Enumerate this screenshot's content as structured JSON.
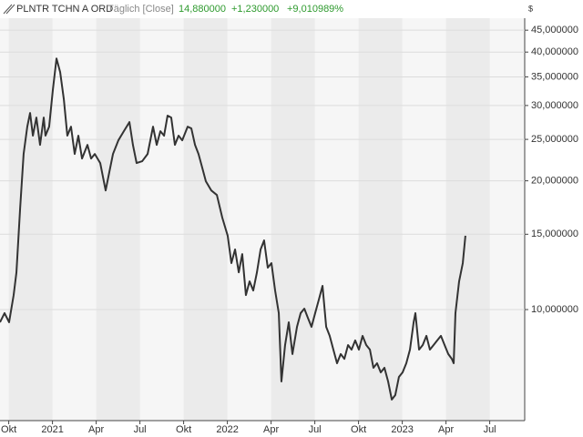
{
  "chart_data": {
    "type": "line",
    "title": "PLNTR TCHN A ORD",
    "subtitle": "Täglich [Close]",
    "annotations": [
      "14,880000",
      "+1,230000",
      "+9,010989%"
    ],
    "y_unit": "$",
    "log_scale": true,
    "grid": true,
    "color": "#333333",
    "x": [
      2020.7,
      2020.726,
      2020.752,
      2020.778,
      2020.794,
      2020.815,
      2020.835,
      2020.856,
      2020.872,
      2020.888,
      2020.908,
      2020.929,
      2020.95,
      2020.96,
      2020.981,
      2021.002,
      2021.023,
      2021.044,
      2021.065,
      2021.085,
      2021.106,
      2021.127,
      2021.148,
      2021.169,
      2021.2,
      2021.221,
      2021.242,
      2021.273,
      2021.304,
      2021.325,
      2021.346,
      2021.377,
      2021.408,
      2021.44,
      2021.46,
      2021.481,
      2021.513,
      2021.544,
      2021.575,
      2021.596,
      2021.617,
      2021.638,
      2021.658,
      2021.679,
      2021.7,
      2021.721,
      2021.742,
      2021.773,
      2021.794,
      2021.815,
      2021.835,
      2021.856,
      2021.877,
      2021.908,
      2021.94,
      2021.971,
      2022.002,
      2022.023,
      2022.044,
      2022.065,
      2022.085,
      2022.106,
      2022.127,
      2022.148,
      2022.169,
      2022.19,
      2022.21,
      2022.231,
      2022.252,
      2022.273,
      2022.294,
      2022.309,
      2022.33,
      2022.351,
      2022.372,
      2022.398,
      2022.419,
      2022.44,
      2022.46,
      2022.481,
      2022.502,
      2022.523,
      2022.544,
      2022.565,
      2022.585,
      2022.606,
      2022.627,
      2022.648,
      2022.669,
      2022.69,
      2022.71,
      2022.731,
      2022.752,
      2022.773,
      2022.794,
      2022.815,
      2022.835,
      2022.856,
      2022.877,
      2022.898,
      2022.919,
      2022.94,
      2022.96,
      2022.981,
      2023.002,
      2023.023,
      2023.044,
      2023.065,
      2023.075,
      2023.096,
      2023.117,
      2023.138,
      2023.158,
      2023.179,
      2023.2,
      2023.221,
      2023.242,
      2023.263,
      2023.283,
      2023.294,
      2023.304,
      2023.325,
      2023.346,
      2023.361
    ],
    "values": [
      9.34,
      9.81,
      9.34,
      10.81,
      12.22,
      17.22,
      23.11,
      26.77,
      28.82,
      25.5,
      28.12,
      24.27,
      28.12,
      25.5,
      26.77,
      32.57,
      38.64,
      35.9,
      31.02,
      25.5,
      26.77,
      23.11,
      25.5,
      22.55,
      24.27,
      22.55,
      23.11,
      22.01,
      18.99,
      20.96,
      23.11,
      24.88,
      26.12,
      27.44,
      24.27,
      22.01,
      22.23,
      23.11,
      26.77,
      24.27,
      26.12,
      25.5,
      28.4,
      28.12,
      24.27,
      25.5,
      24.88,
      26.77,
      26.52,
      24.27,
      23.11,
      21.48,
      19.95,
      18.99,
      18.53,
      16.4,
      14.87,
      12.84,
      13.82,
      12.22,
      13.48,
      10.81,
      11.64,
      11.08,
      12.22,
      13.82,
      14.51,
      12.53,
      12.84,
      11.08,
      9.81,
      6.79,
      8.26,
      9.34,
      7.87,
      9.11,
      9.81,
      10.05,
      9.57,
      9.11,
      9.81,
      10.55,
      11.36,
      9.11,
      8.68,
      8.06,
      7.49,
      7.87,
      7.67,
      8.26,
      8.06,
      8.47,
      8.06,
      8.68,
      8.26,
      8.06,
      7.31,
      7.49,
      7.13,
      7.31,
      6.79,
      6.16,
      6.31,
      6.96,
      7.13,
      7.49,
      8.06,
      9.34,
      9.81,
      8.06,
      8.26,
      8.68,
      8.06,
      8.26,
      8.47,
      8.68,
      8.26,
      7.87,
      7.67,
      7.49,
      9.81,
      11.64,
      12.84,
      14.88
    ],
    "xlim": [
      2020.7,
      2023.7
    ],
    "xticks": [
      {
        "value": 2020.75,
        "label": "Okt"
      },
      {
        "value": 2021.0,
        "label": "2021"
      },
      {
        "value": 2021.25,
        "label": "Apr"
      },
      {
        "value": 2021.5,
        "label": "Jul"
      },
      {
        "value": 2021.75,
        "label": "Okt"
      },
      {
        "value": 2022.0,
        "label": "2022"
      },
      {
        "value": 2022.25,
        "label": "Apr"
      },
      {
        "value": 2022.5,
        "label": "Jul"
      },
      {
        "value": 2022.75,
        "label": "Okt"
      },
      {
        "value": 2023.0,
        "label": "2023"
      },
      {
        "value": 2023.25,
        "label": "Apr"
      },
      {
        "value": 2023.5,
        "label": "Jul"
      }
    ],
    "ylim": [
      5.5,
      48
    ],
    "yticks": [
      {
        "value": 10,
        "label": "10,000000"
      },
      {
        "value": 15,
        "label": "15,000000"
      },
      {
        "value": 20,
        "label": "20,000000"
      },
      {
        "value": 25,
        "label": "25,000000"
      },
      {
        "value": 30,
        "label": "30,000000"
      },
      {
        "value": 35,
        "label": "35,000000"
      },
      {
        "value": 40,
        "label": "40,000000"
      },
      {
        "value": 45,
        "label": "45,000000"
      }
    ]
  }
}
